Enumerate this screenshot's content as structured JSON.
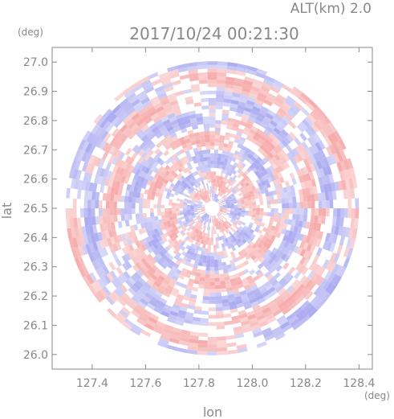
{
  "chart_data": {
    "type": "heatmap",
    "title": "2017/10/24 00:21:30",
    "subtitle": "ALT(km) 2.0",
    "xlabel": "lon",
    "ylabel": "lat",
    "x_unit": "(deg)",
    "y_unit": "(deg)",
    "xlim": [
      127.25,
      128.45
    ],
    "ylim": [
      25.95,
      27.05
    ],
    "x_ticks": [
      "127.4",
      "127.6",
      "127.8",
      "128.0",
      "128.2",
      "128.4"
    ],
    "x_tick_values": [
      127.4,
      127.6,
      127.8,
      128.0,
      128.2,
      128.4
    ],
    "y_ticks": [
      "26.0",
      "26.1",
      "26.2",
      "26.3",
      "26.4",
      "26.5",
      "26.6",
      "26.7",
      "26.8",
      "26.9",
      "27.0"
    ],
    "y_tick_values": [
      26.0,
      26.1,
      26.2,
      26.3,
      26.4,
      26.5,
      26.6,
      26.7,
      26.8,
      26.9,
      27.0
    ],
    "center": [
      127.85,
      26.5
    ],
    "radius_deg": 0.55,
    "grid": false,
    "colors": {
      "positive": "#f5a3a3",
      "negative": "#a3a3f0",
      "axis": "#888888",
      "text": "#888888"
    }
  }
}
